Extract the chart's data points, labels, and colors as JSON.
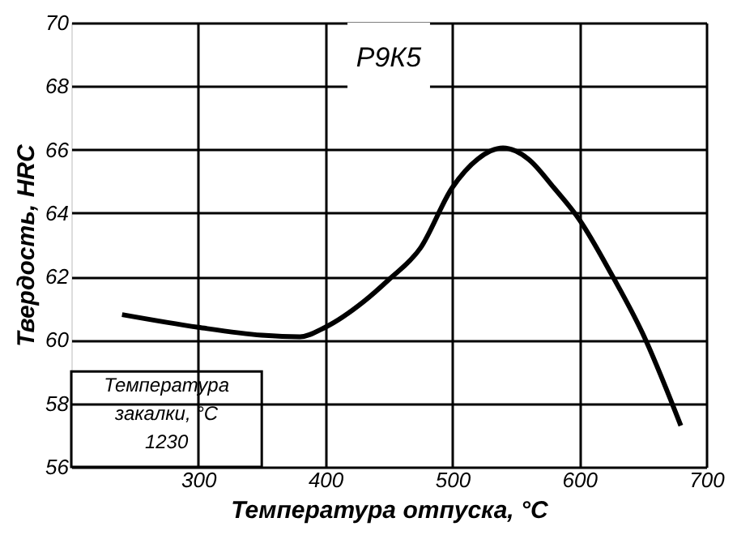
{
  "chart_data": {
    "type": "line",
    "title": "Р9К5",
    "xlabel": "Температура отпуска, °C",
    "ylabel": "Твердость, HRC",
    "x": [
      240,
      300,
      350,
      380,
      400,
      430,
      450,
      475,
      500,
      520,
      540,
      560,
      580,
      600,
      625,
      650,
      680
    ],
    "series": [
      {
        "color": "#000000",
        "values": [
          60.8,
          60.4,
          60.15,
          60.1,
          60.4,
          61.2,
          61.9,
          62.9,
          64.8,
          65.7,
          66.05,
          65.7,
          64.8,
          63.8,
          62.1,
          60.2,
          57.3
        ]
      }
    ],
    "xlim": [
      200,
      700
    ],
    "xticks": [
      300,
      400,
      500,
      600,
      700
    ],
    "ylim": [
      56,
      70
    ],
    "yticks": [
      56,
      58,
      60,
      62,
      64,
      66,
      68,
      70
    ],
    "grid": true,
    "marker": "none",
    "line_style": "solid",
    "annotations": [
      "Температура\nзакалки, °C\n1230"
    ]
  }
}
